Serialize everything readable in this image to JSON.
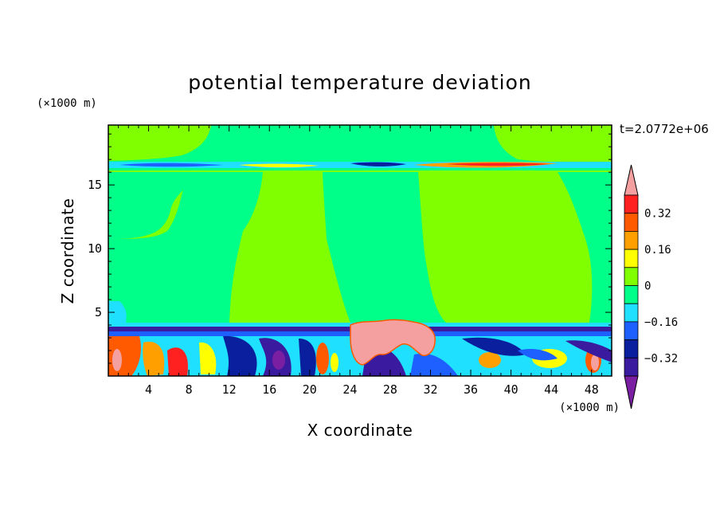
{
  "chart_data": {
    "type": "heatmap",
    "title": "potential temperature deviation",
    "xlabel": "X coordinate",
    "ylabel": "Z coordinate",
    "x_unit": "(×1000 m)",
    "y_unit": "(×1000 m)",
    "time_label": "t=2.0772e+06",
    "xlim": [
      0,
      50
    ],
    "ylim": [
      0,
      19.7
    ],
    "x_ticks": [
      4,
      8,
      12,
      16,
      20,
      24,
      28,
      32,
      36,
      40,
      44,
      48
    ],
    "y_ticks": [
      5,
      10,
      15
    ],
    "colorbar": {
      "levels": [
        -0.4,
        -0.32,
        -0.24,
        -0.16,
        -0.08,
        0,
        0.08,
        0.16,
        0.24,
        0.32,
        0.4
      ],
      "colors": [
        "#7b1fa2",
        "#3a1a9e",
        "#0a1f9e",
        "#1e5fff",
        "#20e0ff",
        "#00ff88",
        "#80ff00",
        "#ffff00",
        "#ffa000",
        "#ff5a00",
        "#ff2020",
        "#f4a0a0"
      ],
      "labels": [
        "0.32",
        "0.16",
        "0",
        "−0.16",
        "−0.32"
      ],
      "label_values": [
        0.32,
        0.16,
        0,
        -0.16,
        -0.32
      ]
    },
    "regions": {
      "background": "#80ff00",
      "upper_green_band_z": [
        16.4,
        19.7
      ],
      "tropopause_layer_z": 16.6,
      "boundary_layer_top_z": 3.9,
      "warm_plume": {
        "x": [
          23.5,
          32.5
        ],
        "z": [
          2.5,
          4.2
        ]
      }
    }
  }
}
